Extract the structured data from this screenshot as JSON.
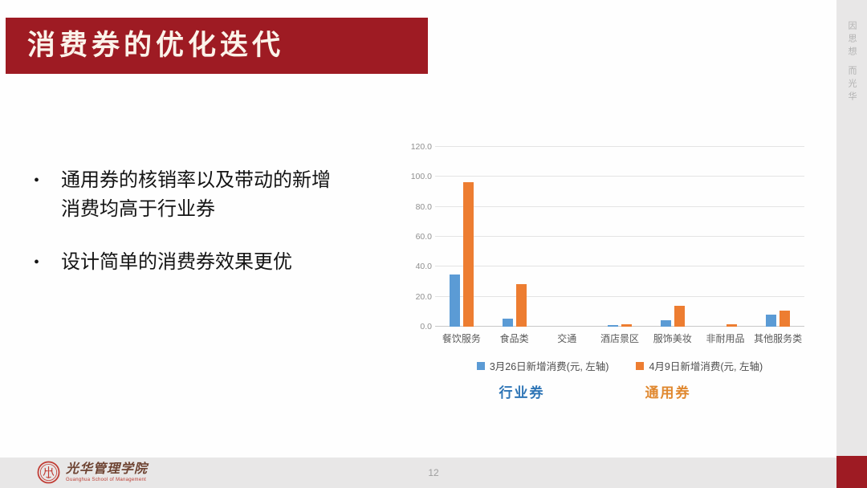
{
  "slide": {
    "title": "消费券的优化迭代",
    "bullets": [
      "通用券的核销率以及带动的新增消费均高于行业券",
      "设计简单的消费券效果更优"
    ],
    "side_text": "因思想 而光华",
    "page_number": "12",
    "footer": {
      "logo_cn": "光华管理学院",
      "logo_en": "Guanghua School of Management"
    }
  },
  "colors": {
    "banner_red": "#9e1b23",
    "bar_blue": "#5b9bd5",
    "bar_orange": "#ed7d31",
    "group_label_blue": "#2e75b6",
    "group_label_orange": "#e0882f"
  },
  "chart_data": {
    "type": "bar",
    "categories": [
      "餐饮服务",
      "食品类",
      "交通",
      "酒店景区",
      "服饰美妆",
      "非耐用品",
      "其他服务类"
    ],
    "series": [
      {
        "name": "3月26日新增消费(元, 左轴)",
        "color": "#5b9bd5",
        "values": [
          35.0,
          5.5,
          0.0,
          1.3,
          4.2,
          0.0,
          8.3
        ]
      },
      {
        "name": "4月9日新增消费(元, 左轴)",
        "color": "#ed7d31",
        "values": [
          96.5,
          28.2,
          0.0,
          1.8,
          14.0,
          1.4,
          10.8
        ]
      }
    ],
    "ylim": [
      0,
      120
    ],
    "yticks": [
      "0.0",
      "20.0",
      "40.0",
      "60.0",
      "80.0",
      "100.0",
      "120.0"
    ],
    "grid": true,
    "legend_position": "bottom",
    "group_labels": [
      "行业券",
      "通用券"
    ]
  }
}
